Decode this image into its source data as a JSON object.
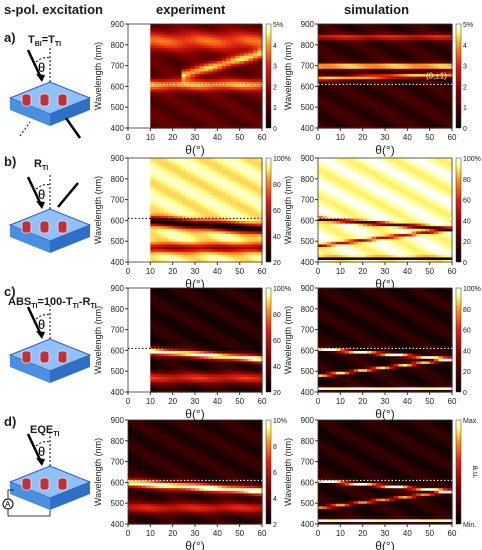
{
  "headers": {
    "excitation": "s-pol. excitation",
    "experiment": "experiment",
    "simulation": "simulation"
  },
  "rows": [
    {
      "label": "a)",
      "schematic_title": "T",
      "schematic_sub": "BI",
      "schematic_eq": "=T",
      "schematic_sub2": "TI",
      "angle_symbol": "θ"
    },
    {
      "label": "b)",
      "schematic_title": "R",
      "schematic_sub": "TI",
      "angle_symbol": "θ"
    },
    {
      "label": "c)",
      "schematic_title": "ABS",
      "schematic_sub": "TI",
      "schematic_eq": "=100-T",
      "schematic_sub2": "TI",
      "schematic_eq2": "-R",
      "schematic_sub3": "TI",
      "angle_symbol": "θ"
    },
    {
      "label": "d)",
      "schematic_title": "EQE",
      "schematic_sub": "TI",
      "angle_symbol": "θ",
      "meter_symbol": "A"
    }
  ],
  "colors": {
    "low": "#000000",
    "mid": "#d01010",
    "high": "#ffff90",
    "top": "#ffffff",
    "layer_blue": "#4a8fe0",
    "layer_red": "#c0303a"
  },
  "chart_data": [
    {
      "id": "a-exp",
      "type": "heatmap",
      "row": "a)",
      "column": "experiment",
      "xlabel": "θ(°)",
      "ylabel": "Wavelength (nm)",
      "xlim": [
        0,
        60
      ],
      "ylim": [
        400,
        900
      ],
      "x_ticks": [
        0,
        10,
        20,
        30,
        40,
        50,
        60
      ],
      "y_ticks": [
        400,
        500,
        600,
        700,
        800,
        900
      ],
      "colorbar": {
        "ticks": [
          "0",
          "1",
          "2",
          "3",
          "4",
          "5%"
        ]
      },
      "dotted_line_y": 610,
      "x_data_start": 10,
      "bands": [
        {
          "x": [
            10,
            60
          ],
          "y": [
            610,
            610
          ],
          "width": 40,
          "intensity": 0.55
        },
        {
          "x": [
            25,
            60
          ],
          "y": [
            660,
            760
          ],
          "width": 35,
          "intensity": 0.6
        },
        {
          "x": [
            10,
            60
          ],
          "y": [
            820,
            820
          ],
          "width": 70,
          "intensity": 0.45
        }
      ],
      "background": 0.25,
      "annotation": ""
    },
    {
      "id": "a-sim",
      "type": "heatmap",
      "row": "a)",
      "column": "simulation",
      "xlabel": "θ(°)",
      "ylabel": "Wavelength (nm)",
      "xlim": [
        0,
        60
      ],
      "ylim": [
        400,
        900
      ],
      "x_ticks": [
        0,
        10,
        20,
        30,
        40,
        50,
        60
      ],
      "y_ticks": [
        400,
        500,
        600,
        700,
        800,
        900
      ],
      "colorbar": {
        "ticks": [
          "0",
          "1",
          "2",
          "3",
          "4",
          "5%"
        ]
      },
      "dotted_line_y": 610,
      "x_data_start": 0,
      "bands": [
        {
          "x": [
            0,
            60
          ],
          "y": [
            700,
            700
          ],
          "width": 18,
          "intensity": 0.85
        },
        {
          "x": [
            0,
            60
          ],
          "y": [
            640,
            660
          ],
          "width": 14,
          "intensity": 0.7
        },
        {
          "x": [
            0,
            60
          ],
          "y": [
            840,
            840
          ],
          "width": 20,
          "intensity": 0.45
        }
      ],
      "background": 0.15,
      "annotation": "(0,±1)"
    },
    {
      "id": "b-exp",
      "type": "heatmap",
      "row": "b)",
      "column": "experiment",
      "xlabel": "θ(°)",
      "ylabel": "Wavelength (nm)",
      "xlim": [
        0,
        60
      ],
      "ylim": [
        400,
        900
      ],
      "x_ticks": [
        0,
        10,
        20,
        30,
        40,
        50,
        60
      ],
      "y_ticks": [
        400,
        500,
        600,
        700,
        800,
        900
      ],
      "colorbar": {
        "ticks": [
          "20",
          "40",
          "60",
          "80",
          "100%"
        ]
      },
      "dotted_line_y": 610,
      "x_data_start": 10,
      "bands": [
        {
          "x": [
            10,
            60
          ],
          "y": [
            600,
            560
          ],
          "width": 30,
          "intensity": -0.9
        },
        {
          "x": [
            10,
            60
          ],
          "y": [
            470,
            470
          ],
          "width": 30,
          "intensity": -0.5
        }
      ],
      "background": 0.92,
      "annotation": ""
    },
    {
      "id": "b-sim",
      "type": "heatmap",
      "row": "b)",
      "column": "simulation",
      "xlabel": "θ(°)",
      "ylabel": "Wavelength (nm)",
      "xlim": [
        0,
        60
      ],
      "ylim": [
        400,
        900
      ],
      "x_ticks": [
        0,
        10,
        20,
        30,
        40,
        50,
        60
      ],
      "y_ticks": [
        400,
        500,
        600,
        700,
        800,
        900
      ],
      "colorbar": {
        "ticks": [
          "0",
          "20",
          "40",
          "60",
          "80",
          "100%"
        ]
      },
      "dotted_line_y": 610,
      "x_data_start": 0,
      "bands": [
        {
          "x": [
            0,
            60
          ],
          "y": [
            610,
            560
          ],
          "width": 12,
          "intensity": -0.8
        },
        {
          "x": [
            0,
            60
          ],
          "y": [
            480,
            560
          ],
          "width": 10,
          "intensity": -0.5
        },
        {
          "x": [
            0,
            60
          ],
          "y": [
            420,
            420
          ],
          "width": 10,
          "intensity": -0.9
        }
      ],
      "background": 0.95,
      "annotation": ""
    },
    {
      "id": "c-exp",
      "type": "heatmap",
      "row": "c)",
      "column": "experiment",
      "xlabel": "θ(°)",
      "ylabel": "Wavelength (nm)",
      "xlim": [
        0,
        60
      ],
      "ylim": [
        400,
        900
      ],
      "x_ticks": [
        0,
        10,
        20,
        30,
        40,
        50,
        60
      ],
      "y_ticks": [
        400,
        500,
        600,
        700,
        800,
        900
      ],
      "colorbar": {
        "ticks": [
          "20",
          "40",
          "60",
          "80",
          "100%"
        ]
      },
      "dotted_line_y": 610,
      "x_data_start": 10,
      "bands": [
        {
          "x": [
            10,
            60
          ],
          "y": [
            600,
            560
          ],
          "width": 25,
          "intensity": 0.9
        },
        {
          "x": [
            10,
            60
          ],
          "y": [
            470,
            470
          ],
          "width": 40,
          "intensity": 0.5
        }
      ],
      "background": 0.1,
      "annotation": ""
    },
    {
      "id": "c-sim",
      "type": "heatmap",
      "row": "c)",
      "column": "simulation",
      "xlabel": "θ(°)",
      "ylabel": "Wavelength (nm)",
      "xlim": [
        0,
        60
      ],
      "ylim": [
        400,
        900
      ],
      "x_ticks": [
        0,
        10,
        20,
        30,
        40,
        50,
        60
      ],
      "y_ticks": [
        400,
        500,
        600,
        700,
        800,
        900
      ],
      "colorbar": {
        "ticks": [
          "0",
          "20",
          "40",
          "60",
          "80",
          "100%"
        ]
      },
      "dotted_line_y": 610,
      "x_data_start": 0,
      "bands": [
        {
          "x": [
            0,
            60
          ],
          "y": [
            610,
            560
          ],
          "width": 10,
          "intensity": 0.95
        },
        {
          "x": [
            0,
            60
          ],
          "y": [
            480,
            560
          ],
          "width": 10,
          "intensity": 0.8
        },
        {
          "x": [
            0,
            60
          ],
          "y": [
            420,
            420
          ],
          "width": 10,
          "intensity": 0.9
        }
      ],
      "background": 0.1,
      "annotation": ""
    },
    {
      "id": "d-exp",
      "type": "heatmap",
      "row": "d)",
      "column": "experiment",
      "xlabel": "θ(°)",
      "ylabel": "Wavelength (nm)",
      "xlim": [
        0,
        60
      ],
      "ylim": [
        400,
        900
      ],
      "x_ticks": [
        0,
        10,
        20,
        30,
        40,
        50,
        60
      ],
      "y_ticks": [
        400,
        500,
        600,
        700,
        800,
        900
      ],
      "colorbar": {
        "ticks": [
          "2",
          "4",
          "6",
          "8",
          "10%"
        ]
      },
      "dotted_line_y": 610,
      "x_data_start": 0,
      "bands": [
        {
          "x": [
            0,
            60
          ],
          "y": [
            600,
            560
          ],
          "width": 28,
          "intensity": 0.9
        },
        {
          "x": [
            0,
            60
          ],
          "y": [
            480,
            480
          ],
          "width": 40,
          "intensity": 0.45
        }
      ],
      "background": 0.12,
      "annotation": ""
    },
    {
      "id": "d-sim",
      "type": "heatmap",
      "row": "d)",
      "column": "simulation",
      "xlabel": "θ(°)",
      "ylabel": "Wavelength (nm)",
      "xlim": [
        0,
        60
      ],
      "ylim": [
        400,
        900
      ],
      "x_ticks": [
        0,
        10,
        20,
        30,
        40,
        50,
        60
      ],
      "y_ticks": [
        400,
        500,
        600,
        700,
        800,
        900
      ],
      "colorbar": {
        "ticks": [
          "Min.",
          "Max."
        ],
        "label": "a.u."
      },
      "dotted_line_y": 610,
      "x_data_start": 0,
      "bands": [
        {
          "x": [
            0,
            60
          ],
          "y": [
            610,
            560
          ],
          "width": 10,
          "intensity": 0.95
        },
        {
          "x": [
            0,
            60
          ],
          "y": [
            480,
            560
          ],
          "width": 10,
          "intensity": 0.7
        },
        {
          "x": [
            0,
            60
          ],
          "y": [
            420,
            420
          ],
          "width": 10,
          "intensity": 0.9
        }
      ],
      "background": 0.1,
      "annotation": ""
    }
  ]
}
